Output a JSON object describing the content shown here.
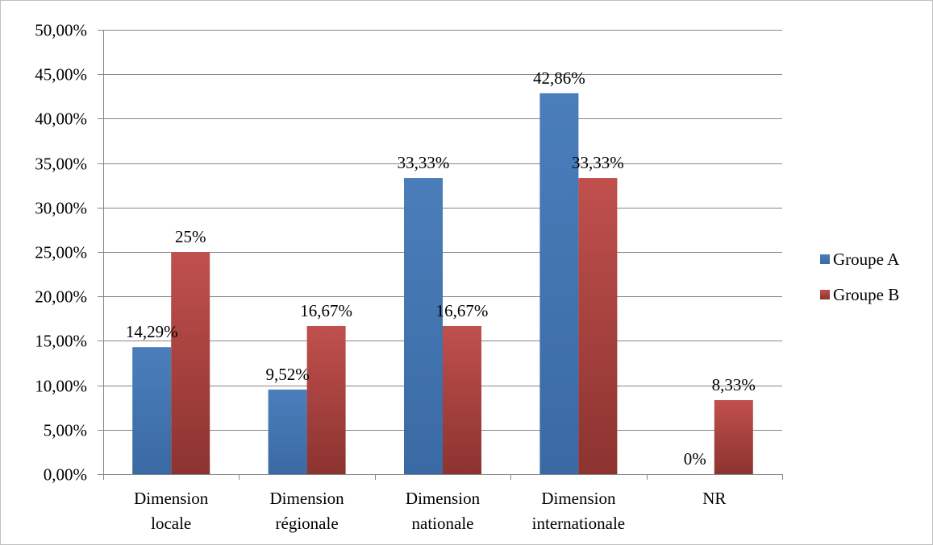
{
  "chart_data": {
    "type": "bar",
    "categories": [
      [
        "Dimension",
        "locale"
      ],
      [
        "Dimension",
        "régionale"
      ],
      [
        "Dimension",
        "nationale"
      ],
      [
        "Dimension",
        "internationale"
      ],
      [
        "NR"
      ]
    ],
    "series": [
      {
        "name": "Groupe A",
        "color": "#4A7EBB",
        "values": [
          14.29,
          9.52,
          33.33,
          42.86,
          0
        ],
        "labels": [
          "14,29%",
          "9,52%",
          "33,33%",
          "42,86%",
          "0%"
        ]
      },
      {
        "name": "Groupe B",
        "color": "#BE4B48",
        "values": [
          25,
          16.67,
          16.67,
          33.33,
          8.33
        ],
        "labels": [
          "25%",
          "16,67%",
          "16,67%",
          "33,33%",
          "8,33%"
        ]
      }
    ],
    "ylim": [
      0,
      50
    ],
    "yticks": [
      0,
      5,
      10,
      15,
      20,
      25,
      30,
      35,
      40,
      45,
      50
    ],
    "ytick_labels": [
      "0,00%",
      "5,00%",
      "10,00%",
      "15,00%",
      "20,00%",
      "25,00%",
      "30,00%",
      "35,00%",
      "40,00%",
      "45,00%",
      "50,00%"
    ],
    "grid": true,
    "legend_position": "right"
  }
}
